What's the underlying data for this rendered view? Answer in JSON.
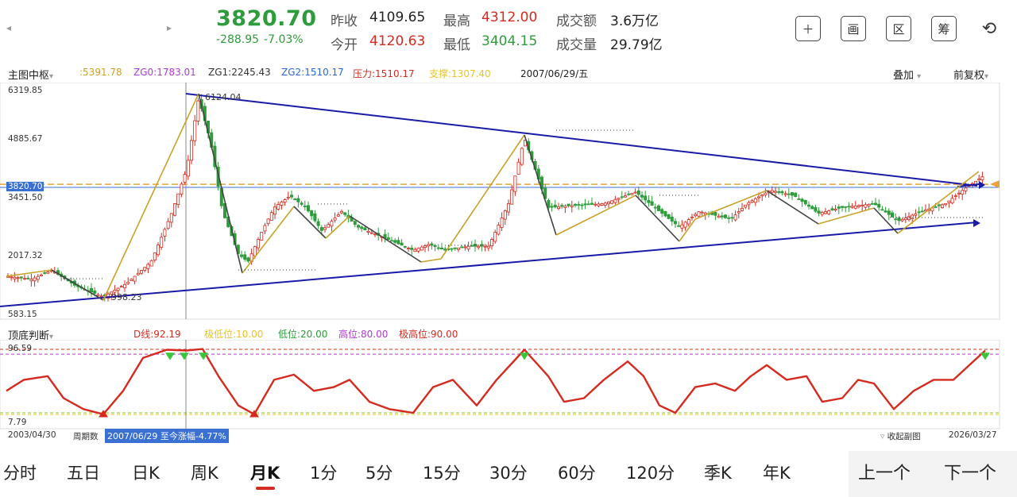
{
  "header": {
    "prev_arrow": "◂",
    "next_arrow": "▸",
    "price": "3820.70",
    "change": "-288.95",
    "change_pct": "-7.03%",
    "quotes": [
      {
        "label": "昨收",
        "value": "4109.65",
        "color": "black"
      },
      {
        "label": "最高",
        "value": "4312.00",
        "color": "red"
      },
      {
        "label": "成交额",
        "value": "3.6万亿",
        "color": "black"
      },
      {
        "label": "今开",
        "value": "4120.63",
        "color": "red"
      },
      {
        "label": "最低",
        "value": "3404.15",
        "color": "green"
      },
      {
        "label": "成交量",
        "value": "29.79亿",
        "color": "black"
      }
    ],
    "tools": [
      {
        "name": "add-button",
        "glyph": "＋"
      },
      {
        "name": "draw-button",
        "glyph": "画"
      },
      {
        "name": "range-button",
        "glyph": "区"
      },
      {
        "name": "chip-button",
        "glyph": "筹"
      },
      {
        "name": "rotate-screen-button",
        "glyph": "⟲"
      }
    ]
  },
  "main_chart": {
    "indicator_name": "主图中枢",
    "indicator_values": [
      {
        "text": ":5391.78",
        "color": "#d4a017"
      },
      {
        "text": "ZG0:1783.01",
        "color": "#b03ad4"
      },
      {
        "text": "ZG1:2245.43",
        "color": "#333333"
      },
      {
        "text": "ZG2:1510.17",
        "color": "#2a6ad4"
      },
      {
        "text": "压力:1510.17",
        "color": "#d42a1f"
      },
      {
        "text": "支撑:1307.40",
        "color": "#e8c420"
      }
    ],
    "date": "2007/06/29/五",
    "overlay_label": "叠加",
    "adjust_label": "前复权",
    "y_labels": [
      "6319.85",
      "4885.67",
      "3451.50",
      "2017.32",
      "583.15"
    ],
    "current_price_tag": "3820.70",
    "annotations": {
      "peak": "6124.04",
      "trough": "998.23"
    }
  },
  "indicator_chart": {
    "name": "顶底判断",
    "values": [
      {
        "text": "D线:92.19",
        "color": "#d42a1f"
      },
      {
        "text": "极低位:10.00",
        "color": "#e8c420"
      },
      {
        "text": "低位:20.00",
        "color": "#2e9c3a"
      },
      {
        "text": "高位:80.00",
        "color": "#b03ad4"
      },
      {
        "text": "极高位:90.00",
        "color": "#d42a1f"
      }
    ],
    "y_top": "96.59",
    "y_bottom": "7.79",
    "start_date": "2003/04/30",
    "end_date": "2026/03/27",
    "period_label": "周期数",
    "info_tag": "2007/06/29 至今涨幅-4.77%",
    "collapse_label": "收起副图"
  },
  "tabs": [
    {
      "label": "分时",
      "active": false
    },
    {
      "label": "五日",
      "active": false
    },
    {
      "label": "日K",
      "active": false
    },
    {
      "label": "周K",
      "active": false
    },
    {
      "label": "月K",
      "active": true
    },
    {
      "label": "1分",
      "active": false
    },
    {
      "label": "5分",
      "active": false
    },
    {
      "label": "15分",
      "active": false
    },
    {
      "label": "30分",
      "active": false
    },
    {
      "label": "60分",
      "active": false
    },
    {
      "label": "120分",
      "active": false
    },
    {
      "label": "季K",
      "active": false
    },
    {
      "label": "年K",
      "active": false
    }
  ],
  "nav": {
    "prev": "上一个",
    "next": "下一个"
  },
  "colors": {
    "up": "#d42a1f",
    "down": "#2e9c3a",
    "trend": "#1a1aa8",
    "zigzag": "#c9a227"
  }
}
